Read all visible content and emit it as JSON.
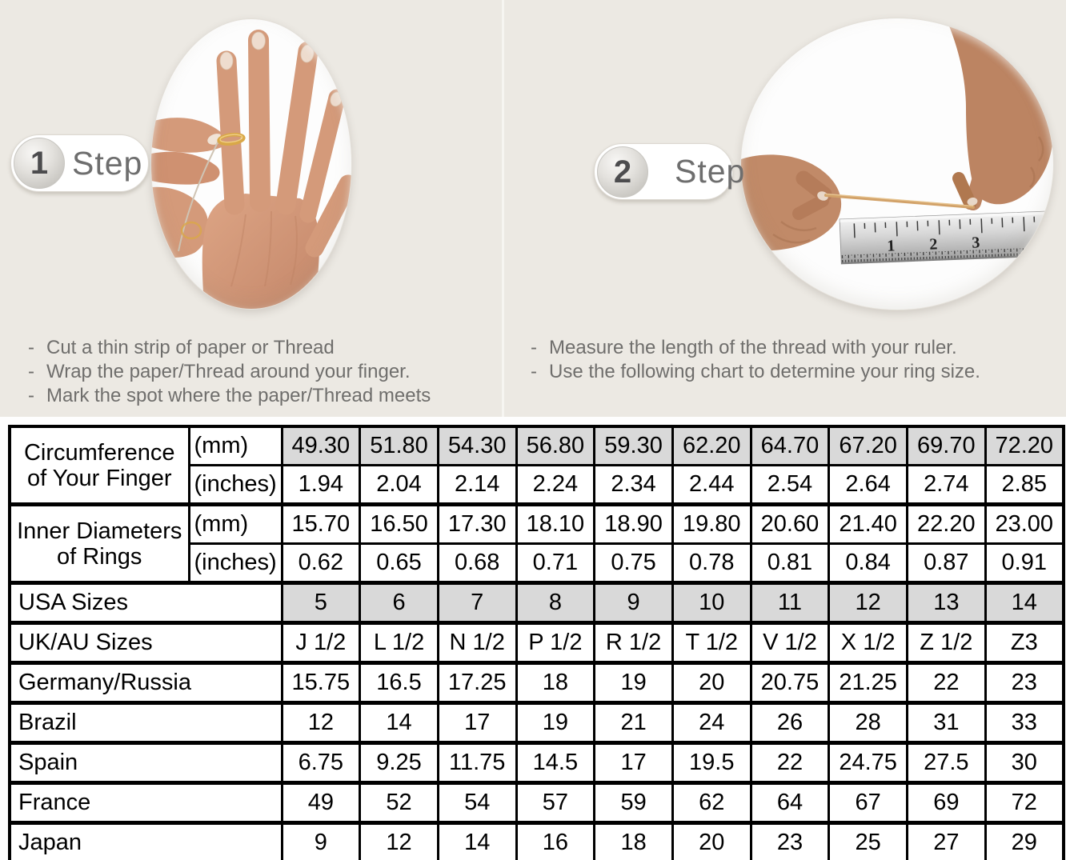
{
  "colors": {
    "top_background": "#ece9e3",
    "bottom_background": "#fefefe",
    "shaded_cell": "#d9d9d9",
    "table_border": "#000000",
    "muted_text": "#6f6e6c",
    "thread_gold": "#d2a269",
    "ring_gold": "#d9a848"
  },
  "steps": [
    {
      "number": "1",
      "label": "Step",
      "photo_alt": "hand-with-gold-ring-photo",
      "instructions": [
        "Cut a thin strip of paper or Thread",
        "Wrap the paper/Thread around your finger.",
        "Mark the spot where the paper/Thread meets"
      ]
    },
    {
      "number": "2",
      "label": "Step",
      "photo_alt": "fingers-holding-thread-over-ruler-photo",
      "ruler_numbers": [
        "1",
        "2",
        "3"
      ],
      "instructions": [
        "Measure the length of the thread with your ruler.",
        "Use the following chart to determine your ring size."
      ]
    }
  ],
  "size_chart": {
    "type": "table",
    "columns": 10,
    "groups": [
      {
        "label": "Circumference of Your Finger",
        "rows": [
          {
            "unit": "(mm)",
            "shaded": true,
            "values": [
              "49.30",
              "51.80",
              "54.30",
              "56.80",
              "59.30",
              "62.20",
              "64.70",
              "67.20",
              "69.70",
              "72.20"
            ]
          },
          {
            "unit": "(inches)",
            "shaded": false,
            "values": [
              "1.94",
              "2.04",
              "2.14",
              "2.24",
              "2.34",
              "2.44",
              "2.54",
              "2.64",
              "2.74",
              "2.85"
            ]
          }
        ]
      },
      {
        "label": "Inner Diameters of Rings",
        "rows": [
          {
            "unit": "(mm)",
            "shaded": false,
            "values": [
              "15.70",
              "16.50",
              "17.30",
              "18.10",
              "18.90",
              "19.80",
              "20.60",
              "21.40",
              "22.20",
              "23.00"
            ]
          },
          {
            "unit": "(inches)",
            "shaded": false,
            "values": [
              "0.62",
              "0.65",
              "0.68",
              "0.71",
              "0.75",
              "0.78",
              "0.81",
              "0.84",
              "0.87",
              "0.91"
            ]
          }
        ]
      }
    ],
    "size_rows": [
      {
        "label": "USA Sizes",
        "shaded": true,
        "values": [
          "5",
          "6",
          "7",
          "8",
          "9",
          "10",
          "11",
          "12",
          "13",
          "14"
        ]
      },
      {
        "label": "UK/AU Sizes",
        "shaded": false,
        "values": [
          "J 1/2",
          "L 1/2",
          "N 1/2",
          "P 1/2",
          "R 1/2",
          "T 1/2",
          "V 1/2",
          "X 1/2",
          "Z 1/2",
          "Z3"
        ]
      },
      {
        "label": "Germany/Russia",
        "shaded": false,
        "values": [
          "15.75",
          "16.5",
          "17.25",
          "18",
          "19",
          "20",
          "20.75",
          "21.25",
          "22",
          "23"
        ]
      },
      {
        "label": "Brazil",
        "shaded": false,
        "values": [
          "12",
          "14",
          "17",
          "19",
          "21",
          "24",
          "26",
          "28",
          "31",
          "33"
        ]
      },
      {
        "label": "Spain",
        "shaded": false,
        "values": [
          "6.75",
          "9.25",
          "11.75",
          "14.5",
          "17",
          "19.5",
          "22",
          "24.75",
          "27.5",
          "30"
        ]
      },
      {
        "label": "France",
        "shaded": false,
        "values": [
          "49",
          "52",
          "54",
          "57",
          "59",
          "62",
          "64",
          "67",
          "69",
          "72"
        ]
      },
      {
        "label": "Japan",
        "shaded": false,
        "values": [
          "9",
          "12",
          "14",
          "16",
          "18",
          "20",
          "23",
          "25",
          "27",
          "29"
        ]
      }
    ]
  }
}
